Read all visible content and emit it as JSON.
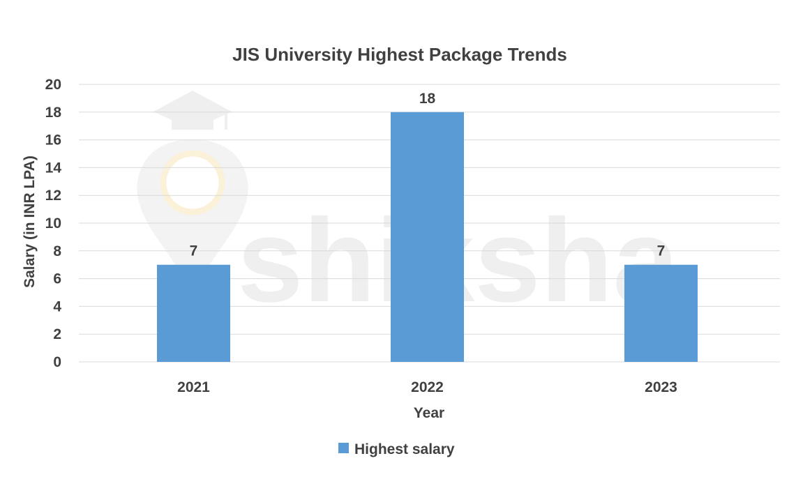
{
  "chart_data": {
    "type": "bar",
    "title": "JIS University Highest Package Trends",
    "xlabel": "Year",
    "ylabel": "Salary (in INR LPA)",
    "categories": [
      "2021",
      "2022",
      "2023"
    ],
    "series": [
      {
        "name": "Highest salary",
        "values": [
          7,
          18,
          7
        ],
        "color": "#5b9bd5"
      }
    ],
    "ylim": [
      0,
      20
    ],
    "yticks": [
      0,
      2,
      4,
      6,
      8,
      10,
      12,
      14,
      16,
      18,
      20
    ],
    "grid": true,
    "legend_position": "bottom",
    "data_labels": true
  },
  "watermark": {
    "text": "shiksha",
    "icon": "graduation-cap-logo"
  }
}
